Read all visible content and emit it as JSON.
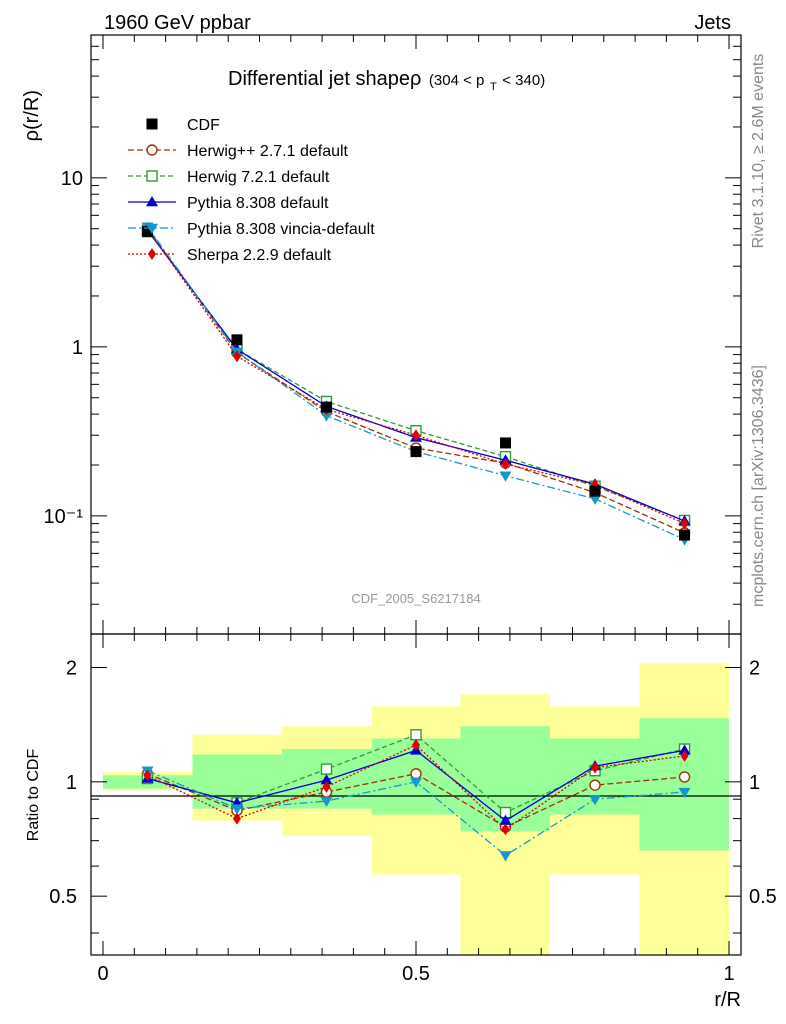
{
  "header": {
    "left": "1960 GeV ppbar",
    "right": "Jets"
  },
  "side": {
    "rivet": "Rivet 3.1.10, ≥ 2.6M events",
    "mcplots": "mcplots.cern.ch [arXiv:1306.3436]"
  },
  "chart_data": {
    "type": "line",
    "title": "Differential jet shapeρ",
    "title_range": {
      "pre": "(304 < p",
      "sub": "T",
      "post": " < 340)"
    },
    "analysis_label": "CDF_2005_S6217184",
    "xlabel": "r/R",
    "ylabel": "ρ(r/R)",
    "ratio_ylabel": "Ratio to CDF",
    "xlim": [
      0,
      1
    ],
    "ylim": [
      0.02,
      70
    ],
    "yscale": "log",
    "ratio_ylim": [
      0.35,
      2.45
    ],
    "x_ticks": [
      "0",
      "0.5",
      "1"
    ],
    "x_tick_values": [
      0,
      0.5,
      1
    ],
    "y_tick_labels": [
      "10",
      "1",
      "10⁻¹"
    ],
    "y_tick_values": [
      10,
      1,
      0.1
    ],
    "ratio_tick_labels": [
      "2",
      "1",
      "0.5"
    ],
    "ratio_tick_values": [
      2,
      1,
      0.5
    ],
    "x": [
      0.071,
      0.214,
      0.357,
      0.5,
      0.643,
      0.786,
      0.929
    ],
    "bin_edges": [
      0.0,
      0.143,
      0.286,
      0.429,
      0.571,
      0.714,
      0.857,
      1.0
    ],
    "data": {
      "name": "CDF",
      "values": [
        4.8,
        1.1,
        0.44,
        0.24,
        0.27,
        0.14,
        0.077
      ]
    },
    "bands": {
      "inner": [
        [
          0.96,
          1.04
        ],
        [
          0.85,
          1.18
        ],
        [
          0.85,
          1.22
        ],
        [
          0.82,
          1.3
        ],
        [
          0.74,
          1.4
        ],
        [
          0.82,
          1.3
        ],
        [
          0.66,
          1.47
        ]
      ],
      "outer": [
        [
          0.95,
          1.06
        ],
        [
          0.79,
          1.33
        ],
        [
          0.72,
          1.4
        ],
        [
          0.57,
          1.58
        ],
        [
          0.35,
          1.7
        ],
        [
          0.57,
          1.58
        ],
        [
          0.35,
          2.05
        ]
      ]
    },
    "series": [
      {
        "name": "Herwig++ 2.7.1 default",
        "color": "#993300",
        "dash": "6,3",
        "marker": "circle-open",
        "ratio": [
          1.05,
          0.84,
          0.94,
          1.05,
          0.76,
          0.98,
          1.03
        ]
      },
      {
        "name": "Herwig 7.2.1 default",
        "color": "#339933",
        "dash": "5,3",
        "marker": "square-open",
        "ratio": [
          1.02,
          0.88,
          1.08,
          1.33,
          0.83,
          1.07,
          1.22
        ]
      },
      {
        "name": "Pythia 8.308 default",
        "color": "#0000cc",
        "dash": "",
        "marker": "triangle-up",
        "ratio": [
          1.02,
          0.88,
          1.01,
          1.21,
          0.79,
          1.1,
          1.21
        ]
      },
      {
        "name": "Pythia 8.308 vincia-default",
        "color": "#1199cc",
        "dash": "8,3,2,3",
        "marker": "triangle-down",
        "ratio": [
          1.07,
          0.85,
          0.89,
          1.0,
          0.64,
          0.9,
          0.94
        ]
      },
      {
        "name": "Sherpa 2.2.9 default",
        "color": "#dd0000",
        "dash": "2,2",
        "marker": "diamond",
        "ratio": [
          1.04,
          0.8,
          0.97,
          1.25,
          0.75,
          1.09,
          1.17
        ]
      }
    ]
  }
}
